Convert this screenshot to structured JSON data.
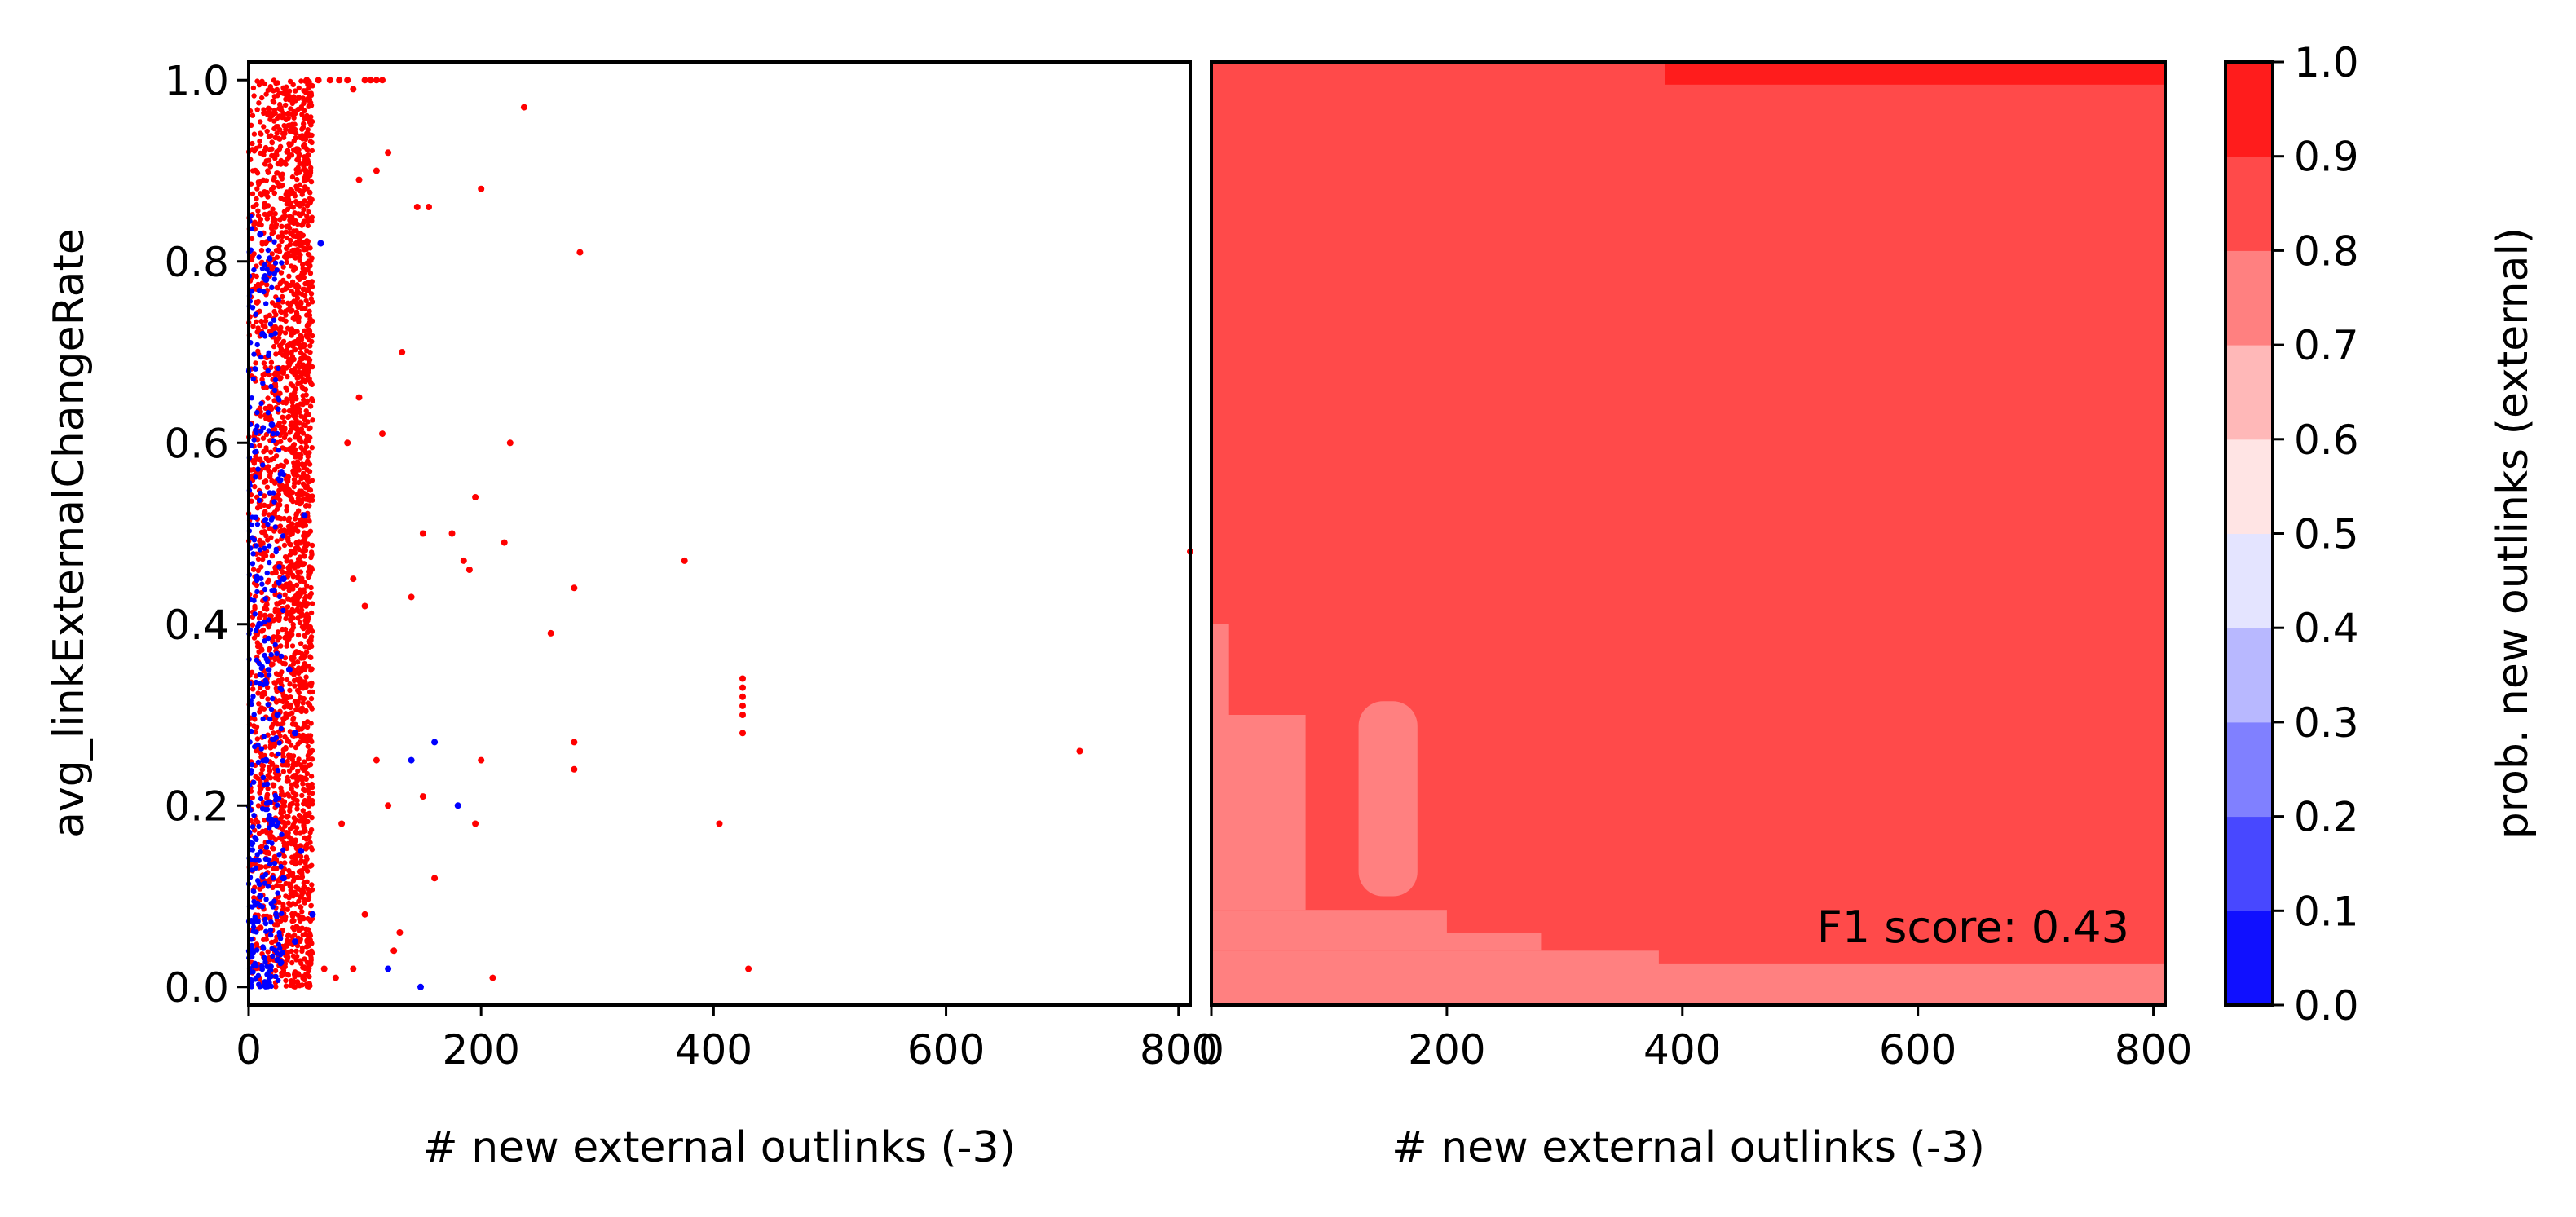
{
  "chart_data": [
    {
      "type": "scatter",
      "xlabel": "# new external outlinks (-3)",
      "ylabel": "avg_linkExternalChangeRate",
      "xlim": [
        0,
        810
      ],
      "ylim": [
        -0.02,
        1.02
      ],
      "x_ticks": [
        "0",
        "200",
        "400",
        "600",
        "800"
      ],
      "y_ticks": [
        "0.0",
        "0.2",
        "0.4",
        "0.6",
        "0.8",
        "1.0"
      ],
      "colors": {
        "class_external": "#ff0000",
        "class_internal": "#0000ff"
      },
      "red_band_x": [
        0,
        55
      ],
      "blue_band_x": [
        0,
        30
      ],
      "series": [
        {
          "color": "red",
          "points": [
            [
              50,
              1.0
            ],
            [
              60,
              1.0
            ],
            [
              70,
              1.0
            ],
            [
              78,
              1.0
            ],
            [
              85,
              1.0
            ],
            [
              90,
              0.99
            ],
            [
              100,
              1.0
            ],
            [
              105,
              1.0
            ],
            [
              110,
              1.0
            ],
            [
              115,
              1.0
            ],
            [
              237,
              0.97
            ],
            [
              120,
              0.92
            ],
            [
              110,
              0.9
            ],
            [
              200,
              0.88
            ],
            [
              95,
              0.89
            ],
            [
              155,
              0.86
            ],
            [
              145,
              0.86
            ],
            [
              285,
              0.81
            ],
            [
              132,
              0.7
            ],
            [
              115,
              0.61
            ],
            [
              95,
              0.65
            ],
            [
              85,
              0.6
            ],
            [
              225,
              0.6
            ],
            [
              195,
              0.54
            ],
            [
              175,
              0.5
            ],
            [
              150,
              0.5
            ],
            [
              220,
              0.49
            ],
            [
              185,
              0.47
            ],
            [
              190,
              0.46
            ],
            [
              375,
              0.47
            ],
            [
              280,
              0.44
            ],
            [
              90,
              0.45
            ],
            [
              100,
              0.42
            ],
            [
              140,
              0.43
            ],
            [
              260,
              0.39
            ],
            [
              810,
              0.48
            ],
            [
              425,
              0.34
            ],
            [
              425,
              0.33
            ],
            [
              425,
              0.32
            ],
            [
              425,
              0.31
            ],
            [
              425,
              0.3
            ],
            [
              425,
              0.28
            ],
            [
              715,
              0.26
            ],
            [
              280,
              0.27
            ],
            [
              200,
              0.25
            ],
            [
              280,
              0.24
            ],
            [
              110,
              0.25
            ],
            [
              150,
              0.21
            ],
            [
              120,
              0.2
            ],
            [
              195,
              0.18
            ],
            [
              405,
              0.18
            ],
            [
              80,
              0.18
            ],
            [
              160,
              0.12
            ],
            [
              100,
              0.08
            ],
            [
              130,
              0.06
            ],
            [
              125,
              0.04
            ],
            [
              90,
              0.02
            ],
            [
              210,
              0.01
            ],
            [
              430,
              0.02
            ],
            [
              75,
              0.01
            ],
            [
              65,
              0.02
            ]
          ]
        },
        {
          "color": "blue",
          "points": [
            [
              10,
              0.83
            ],
            [
              15,
              0.78
            ],
            [
              62,
              0.82
            ],
            [
              12,
              0.72
            ],
            [
              20,
              0.62
            ],
            [
              48,
              0.52
            ],
            [
              30,
              0.45
            ],
            [
              35,
              0.35
            ],
            [
              25,
              0.3
            ],
            [
              40,
              0.28
            ],
            [
              15,
              0.25
            ],
            [
              140,
              0.25
            ],
            [
              160,
              0.27
            ],
            [
              180,
              0.2
            ],
            [
              20,
              0.18
            ],
            [
              45,
              0.15
            ],
            [
              30,
              0.12
            ],
            [
              10,
              0.1
            ],
            [
              55,
              0.08
            ],
            [
              120,
              0.02
            ],
            [
              148,
              0.0
            ],
            [
              40,
              0.05
            ],
            [
              25,
              0.03
            ]
          ]
        }
      ]
    },
    {
      "type": "heatmap",
      "xlabel": "# new external outlinks (-3)",
      "xlim": [
        0,
        810
      ],
      "ylim": [
        -0.02,
        1.02
      ],
      "x_ticks": [
        "0",
        "200",
        "400",
        "600",
        "800"
      ],
      "regions": [
        {
          "level": "0.8-0.9",
          "x": [
            0,
            810
          ],
          "y": [
            -0.02,
            1.02
          ]
        },
        {
          "level": "0.9-1.0",
          "x": [
            385,
            810
          ],
          "y": [
            0.995,
            1.02
          ]
        },
        {
          "level": "0.7-0.8",
          "x": [
            0,
            810
          ],
          "y": [
            -0.02,
            0.025
          ]
        },
        {
          "level": "0.7-0.8",
          "x": [
            0,
            380
          ],
          "y": [
            0.025,
            0.04
          ]
        },
        {
          "level": "0.7-0.8",
          "x": [
            0,
            280
          ],
          "y": [
            0.04,
            0.06
          ]
        },
        {
          "level": "0.7-0.8",
          "x": [
            0,
            200
          ],
          "y": [
            0.06,
            0.085
          ]
        },
        {
          "level": "0.7-0.8",
          "x": [
            0,
            80
          ],
          "y": [
            0.085,
            0.3
          ]
        },
        {
          "level": "0.7-0.8",
          "x": [
            125,
            175
          ],
          "y": [
            0.1,
            0.315
          ]
        },
        {
          "level": "0.7-0.8",
          "x": [
            0,
            15
          ],
          "y": [
            0.3,
            0.4
          ]
        }
      ],
      "annotation": "F1 score: 0.43"
    }
  ],
  "colorbar": {
    "label": "prob. new outlinks (external)",
    "ticks": [
      "0.0",
      "0.1",
      "0.2",
      "0.3",
      "0.4",
      "0.5",
      "0.6",
      "0.7",
      "0.8",
      "0.9",
      "1.0"
    ],
    "levels": [
      "#1010ff",
      "#4848ff",
      "#8080ff",
      "#b8b8ff",
      "#e4e4ff",
      "#ffe4e4",
      "#ffb8b8",
      "#ff8080",
      "#ff4a4a",
      "#ff1c1c"
    ]
  }
}
